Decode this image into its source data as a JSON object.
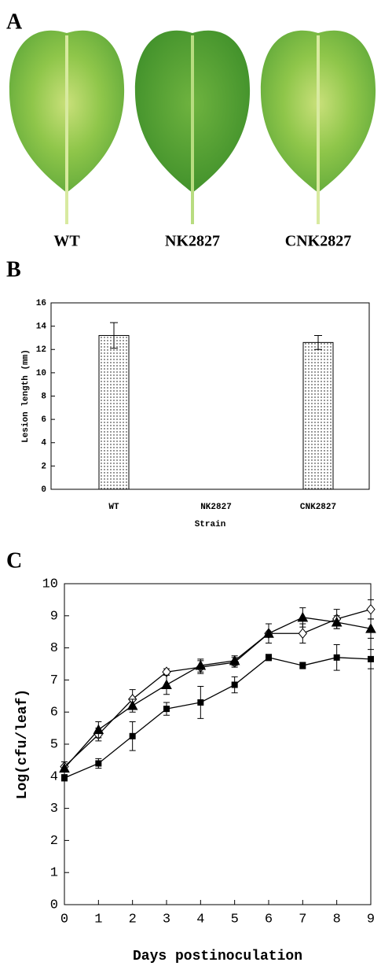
{
  "panel_a": {
    "label": "A",
    "captions": [
      "WT",
      "NK2827",
      "CNK2827"
    ]
  },
  "chart_data": [
    {
      "type": "bar",
      "panel": "B",
      "x_label": "Strain",
      "y_label": "Lesion length (mm)",
      "categories": [
        "WT",
        "NK2827",
        "CNK2827"
      ],
      "values": [
        13.2,
        0,
        12.6
      ],
      "errors": [
        1.1,
        null,
        0.6
      ],
      "color": "#000000",
      "ylim": [
        0,
        16
      ],
      "yticks": [
        0,
        2,
        4,
        6,
        8,
        10,
        12,
        14,
        16
      ]
    },
    {
      "type": "line",
      "panel": "C",
      "x_label": "Days postinoculation",
      "y_label": "Log(cfu/leaf)",
      "x": [
        0,
        1,
        2,
        3,
        4,
        5,
        6,
        7,
        8,
        9
      ],
      "xlim": [
        0,
        9
      ],
      "xticks": [
        0,
        1,
        2,
        3,
        4,
        5,
        6,
        7,
        8,
        9
      ],
      "ylim": [
        0,
        10
      ],
      "yticks": [
        0,
        1,
        2,
        3,
        4,
        5,
        6,
        7,
        8,
        9,
        10
      ],
      "series": [
        {
          "marker": "diamond-open",
          "color": "#000000",
          "values": [
            4.3,
            5.3,
            6.4,
            7.25,
            7.4,
            7.55,
            8.45,
            8.45,
            8.9,
            9.2
          ],
          "errors": [
            0.15,
            0.2,
            0.3,
            0.1,
            0.2,
            0.15,
            0.3,
            0.3,
            0.3,
            0.3
          ]
        },
        {
          "marker": "triangle",
          "color": "#000000",
          "values": [
            4.25,
            5.45,
            6.2,
            6.85,
            7.45,
            7.6,
            8.45,
            8.95,
            8.8,
            8.6
          ],
          "errors": [
            0.2,
            0.25,
            0.2,
            0.3,
            0.2,
            0.15,
            0.3,
            0.3,
            0.2,
            0.3
          ]
        },
        {
          "marker": "square",
          "color": "#000000",
          "values": [
            3.95,
            4.4,
            5.25,
            6.1,
            6.3,
            6.85,
            7.7,
            7.45,
            7.7,
            7.65
          ],
          "errors": [
            0.1,
            0.15,
            0.45,
            0.2,
            0.5,
            0.25,
            0.1,
            0.1,
            0.4,
            0.3
          ]
        }
      ]
    }
  ]
}
